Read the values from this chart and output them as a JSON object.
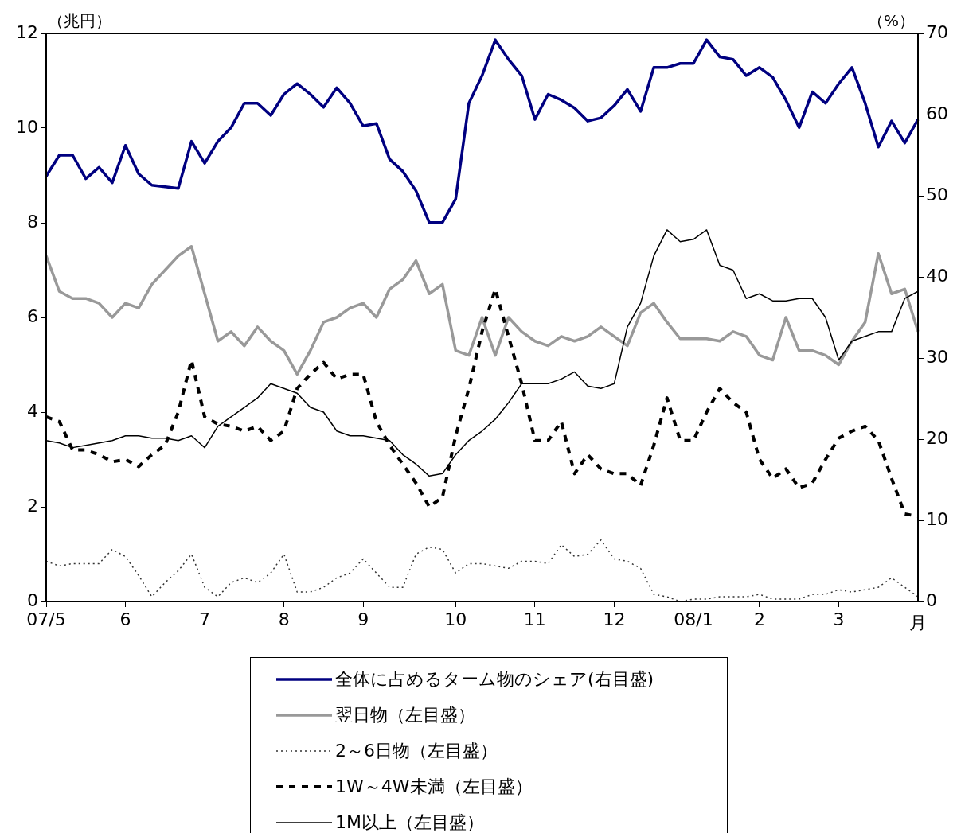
{
  "chart_data": {
    "type": "line",
    "ylabel": "（兆円）",
    "y2label": "（%）",
    "xlabel": "月",
    "legend": "bottom",
    "grid": false,
    "marker": "none",
    "categories": [
      "07/5",
      null,
      null,
      null,
      null,
      null,
      "6",
      null,
      null,
      null,
      null,
      null,
      "7",
      null,
      null,
      null,
      null,
      null,
      "8",
      null,
      null,
      null,
      null,
      null,
      "9",
      null,
      null,
      null,
      null,
      null,
      null,
      "10",
      null,
      null,
      null,
      null,
      null,
      "11",
      null,
      null,
      null,
      null,
      null,
      "12",
      null,
      null,
      null,
      null,
      null,
      "08/1",
      null,
      null,
      null,
      null,
      "2",
      null,
      null,
      null,
      null,
      null,
      "3",
      null,
      null,
      null,
      null,
      null,
      null
    ],
    "ylim": [
      0,
      12
    ],
    "yticks": [
      0,
      2,
      4,
      6,
      8,
      10,
      12
    ],
    "y2lim": [
      0,
      70
    ],
    "y2ticks": [
      0,
      10,
      20,
      30,
      40,
      50,
      60,
      70
    ],
    "series": [
      {
        "name": "全体に占めるターム物のシェア(右目盛)",
        "color": "#000080",
        "axis": "y2",
        "line_style": "solid",
        "values": [
          52.4,
          55,
          55,
          52.1,
          53.5,
          51.6,
          56.2,
          52.7,
          51.3,
          51.1,
          50.9,
          56.7,
          54,
          56.7,
          58.4,
          61.4,
          61.4,
          59.9,
          62.5,
          63.8,
          62.5,
          60.9,
          63.3,
          61.4,
          58.6,
          58.9,
          54.5,
          53,
          50.6,
          46.7,
          46.7,
          49.6,
          61.4,
          64.8,
          69.2,
          66.8,
          64.8,
          59.4,
          62.5,
          61.8,
          60.8,
          59.2,
          59.6,
          61.1,
          63.1,
          60.4,
          65.8,
          65.8,
          66.3,
          66.3,
          69.2,
          67.1,
          66.8,
          64.8,
          65.8,
          64.6,
          61.8,
          58.4,
          62.8,
          61.4,
          63.8,
          65.8,
          61.4,
          56,
          59.2,
          56.5,
          59.4
        ]
      },
      {
        "name": "翌日物（左目盛）",
        "color": "#999999",
        "line_style": "solid",
        "values": [
          7.3,
          6.55,
          6.4,
          6.4,
          6.3,
          6.0,
          6.3,
          6.2,
          6.7,
          7.0,
          7.3,
          7.5,
          6.5,
          5.5,
          5.7,
          5.4,
          5.8,
          5.5,
          5.3,
          4.8,
          5.3,
          5.9,
          6.0,
          6.2,
          6.3,
          6.0,
          6.6,
          6.8,
          7.2,
          6.5,
          6.7,
          5.3,
          5.2,
          6.0,
          5.2,
          6.0,
          5.7,
          5.5,
          5.4,
          5.6,
          5.5,
          5.6,
          5.8,
          5.6,
          5.4,
          6.1,
          6.3,
          5.9,
          5.55,
          5.55,
          5.55,
          5.5,
          5.7,
          5.6,
          5.2,
          5.1,
          6.0,
          5.3,
          5.3,
          5.2,
          5.0,
          5.5,
          5.9,
          7.35,
          6.5,
          6.6,
          5.7
        ]
      },
      {
        "name": "2～6日物（左目盛）",
        "color": "#333333",
        "line_style": "dotted",
        "values": [
          0.85,
          0.75,
          0.8,
          0.8,
          0.8,
          1.1,
          0.95,
          0.55,
          0.1,
          0.4,
          0.65,
          1.0,
          0.3,
          0.1,
          0.4,
          0.5,
          0.4,
          0.6,
          1.0,
          0.2,
          0.2,
          0.3,
          0.5,
          0.6,
          0.9,
          0.6,
          0.3,
          0.3,
          1.0,
          1.15,
          1.1,
          0.6,
          0.8,
          0.8,
          0.75,
          0.7,
          0.85,
          0.85,
          0.8,
          1.2,
          0.95,
          1.0,
          1.3,
          0.9,
          0.85,
          0.7,
          0.15,
          0.1,
          0.0,
          0.05,
          0.05,
          0.1,
          0.1,
          0.1,
          0.15,
          0.05,
          0.05,
          0.05,
          0.15,
          0.15,
          0.25,
          0.2,
          0.25,
          0.3,
          0.5,
          0.3,
          0.1
        ]
      },
      {
        "name": "1W～4W未満（左目盛）",
        "color": "#000000",
        "line_style": "dashed",
        "values": [
          3.9,
          3.8,
          3.2,
          3.2,
          3.1,
          2.95,
          3.0,
          2.85,
          3.1,
          3.3,
          4.0,
          5.1,
          3.9,
          3.75,
          3.7,
          3.6,
          3.7,
          3.4,
          3.6,
          4.5,
          4.8,
          5.05,
          4.7,
          4.8,
          4.8,
          3.8,
          3.3,
          2.9,
          2.5,
          2.0,
          2.2,
          3.5,
          4.5,
          5.7,
          6.6,
          5.6,
          4.6,
          3.4,
          3.4,
          3.8,
          2.7,
          3.1,
          2.8,
          2.7,
          2.7,
          2.45,
          3.3,
          4.3,
          3.4,
          3.4,
          4.0,
          4.5,
          4.2,
          4.0,
          3.0,
          2.6,
          2.8,
          2.4,
          2.5,
          3.0,
          3.45,
          3.6,
          3.7,
          3.4,
          2.6,
          1.85,
          1.8
        ]
      },
      {
        "name": "1M以上（左目盛）",
        "color": "#000000",
        "line_style": "solid",
        "values": [
          3.4,
          3.35,
          3.25,
          3.3,
          3.35,
          3.4,
          3.5,
          3.5,
          3.45,
          3.45,
          3.4,
          3.5,
          3.25,
          3.7,
          3.9,
          4.1,
          4.3,
          4.6,
          4.5,
          4.4,
          4.1,
          4.0,
          3.6,
          3.5,
          3.5,
          3.45,
          3.4,
          3.1,
          2.9,
          2.65,
          2.7,
          3.1,
          3.4,
          3.6,
          3.85,
          4.2,
          4.6,
          4.6,
          4.6,
          4.7,
          4.85,
          4.55,
          4.5,
          4.6,
          5.8,
          6.3,
          7.3,
          7.85,
          7.6,
          7.65,
          7.85,
          7.1,
          7.0,
          6.4,
          6.5,
          6.35,
          6.35,
          6.4,
          6.4,
          6.0,
          5.1,
          5.5,
          5.6,
          5.7,
          5.7,
          6.4,
          6.55
        ]
      }
    ]
  }
}
